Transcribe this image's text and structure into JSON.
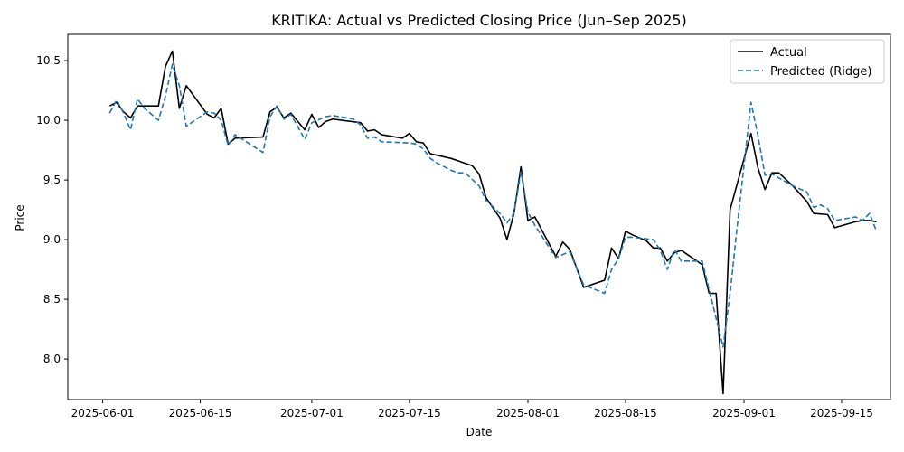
{
  "chart_data": {
    "type": "line",
    "title": "KRITIKA: Actual vs Predicted Closing Price (Jun–Sep 2025)",
    "xlabel": "Date",
    "ylabel": "Price",
    "xlim": [
      "2025-05-27",
      "2025-09-22"
    ],
    "ylim": [
      7.66,
      10.72
    ],
    "x_ticks": [
      "2025-06-01",
      "2025-06-15",
      "2025-07-01",
      "2025-07-15",
      "2025-08-01",
      "2025-08-15",
      "2025-09-01",
      "2025-09-15"
    ],
    "y_ticks": [
      8.0,
      8.5,
      9.0,
      9.5,
      10.0,
      10.5
    ],
    "legend_position": "top-right",
    "grid": false,
    "series": [
      {
        "name": "Actual",
        "color": "#000000",
        "style": "solid",
        "points": [
          [
            "2025-06-02",
            10.12
          ],
          [
            "2025-06-03",
            10.15
          ],
          [
            "2025-06-04",
            10.07
          ],
          [
            "2025-06-05",
            10.02
          ],
          [
            "2025-06-06",
            10.12
          ],
          [
            "2025-06-09",
            10.12
          ],
          [
            "2025-06-10",
            10.45
          ],
          [
            "2025-06-11",
            10.58
          ],
          [
            "2025-06-12",
            10.1
          ],
          [
            "2025-06-13",
            10.29
          ],
          [
            "2025-06-16",
            10.05
          ],
          [
            "2025-06-17",
            10.02
          ],
          [
            "2025-06-18",
            10.1
          ],
          [
            "2025-06-19",
            9.8
          ],
          [
            "2025-06-20",
            9.85
          ],
          [
            "2025-06-24",
            9.86
          ],
          [
            "2025-06-25",
            10.07
          ],
          [
            "2025-06-26",
            10.11
          ],
          [
            "2025-06-27",
            10.02
          ],
          [
            "2025-06-28",
            10.06
          ],
          [
            "2025-06-30",
            9.92
          ],
          [
            "2025-07-01",
            10.05
          ],
          [
            "2025-07-02",
            9.94
          ],
          [
            "2025-07-03",
            9.99
          ],
          [
            "2025-07-04",
            10.01
          ],
          [
            "2025-07-08",
            9.98
          ],
          [
            "2025-07-09",
            9.91
          ],
          [
            "2025-07-10",
            9.92
          ],
          [
            "2025-07-11",
            9.88
          ],
          [
            "2025-07-14",
            9.85
          ],
          [
            "2025-07-15",
            9.89
          ],
          [
            "2025-07-16",
            9.82
          ],
          [
            "2025-07-17",
            9.81
          ],
          [
            "2025-07-18",
            9.72
          ],
          [
            "2025-07-21",
            9.68
          ],
          [
            "2025-07-23",
            9.64
          ],
          [
            "2025-07-24",
            9.62
          ],
          [
            "2025-07-25",
            9.55
          ],
          [
            "2025-07-26",
            9.35
          ],
          [
            "2025-07-28",
            9.18
          ],
          [
            "2025-07-29",
            9.0
          ],
          [
            "2025-07-30",
            9.22
          ],
          [
            "2025-07-31",
            9.61
          ],
          [
            "2025-08-01",
            9.16
          ],
          [
            "2025-08-02",
            9.19
          ],
          [
            "2025-08-05",
            8.86
          ],
          [
            "2025-08-06",
            8.98
          ],
          [
            "2025-08-07",
            8.92
          ],
          [
            "2025-08-09",
            8.6
          ],
          [
            "2025-08-12",
            8.66
          ],
          [
            "2025-08-13",
            8.93
          ],
          [
            "2025-08-14",
            8.84
          ],
          [
            "2025-08-15",
            9.07
          ],
          [
            "2025-08-16",
            9.04
          ],
          [
            "2025-08-18",
            8.99
          ],
          [
            "2025-08-19",
            8.93
          ],
          [
            "2025-08-20",
            8.93
          ],
          [
            "2025-08-21",
            8.82
          ],
          [
            "2025-08-22",
            8.89
          ],
          [
            "2025-08-23",
            8.91
          ],
          [
            "2025-08-26",
            8.79
          ],
          [
            "2025-08-27",
            8.55
          ],
          [
            "2025-08-28",
            8.55
          ],
          [
            "2025-08-29",
            7.71
          ],
          [
            "2025-08-30",
            9.25
          ],
          [
            "2025-09-02",
            9.89
          ],
          [
            "2025-09-03",
            9.6
          ],
          [
            "2025-09-04",
            9.42
          ],
          [
            "2025-09-05",
            9.56
          ],
          [
            "2025-09-06",
            9.56
          ],
          [
            "2025-09-08",
            9.45
          ],
          [
            "2025-09-10",
            9.32
          ],
          [
            "2025-09-11",
            9.22
          ],
          [
            "2025-09-13",
            9.21
          ],
          [
            "2025-09-14",
            9.1
          ],
          [
            "2025-09-17",
            9.15
          ],
          [
            "2025-09-18",
            9.16
          ],
          [
            "2025-09-19",
            9.16
          ],
          [
            "2025-09-20",
            9.15
          ]
        ]
      },
      {
        "name": "Predicted (Ridge)",
        "color": "#1f77b4",
        "style": "dashed",
        "points": [
          [
            "2025-06-02",
            10.06
          ],
          [
            "2025-06-03",
            10.17
          ],
          [
            "2025-06-04",
            10.06
          ],
          [
            "2025-06-05",
            9.92
          ],
          [
            "2025-06-06",
            10.18
          ],
          [
            "2025-06-07",
            10.1
          ],
          [
            "2025-06-09",
            10.0
          ],
          [
            "2025-06-10",
            10.2
          ],
          [
            "2025-06-11",
            10.47
          ],
          [
            "2025-06-12",
            10.29
          ],
          [
            "2025-06-13",
            9.95
          ],
          [
            "2025-06-14",
            9.99
          ],
          [
            "2025-06-16",
            10.07
          ],
          [
            "2025-06-17",
            10.06
          ],
          [
            "2025-06-18",
            10.0
          ],
          [
            "2025-06-19",
            9.79
          ],
          [
            "2025-06-20",
            9.88
          ],
          [
            "2025-06-24",
            9.73
          ],
          [
            "2025-06-25",
            10.03
          ],
          [
            "2025-06-26",
            10.12
          ],
          [
            "2025-06-27",
            10.01
          ],
          [
            "2025-06-28",
            10.05
          ],
          [
            "2025-06-30",
            9.84
          ],
          [
            "2025-07-01",
            9.98
          ],
          [
            "2025-07-03",
            10.03
          ],
          [
            "2025-07-04",
            10.04
          ],
          [
            "2025-07-07",
            10.01
          ],
          [
            "2025-07-08",
            9.96
          ],
          [
            "2025-07-09",
            9.85
          ],
          [
            "2025-07-10",
            9.86
          ],
          [
            "2025-07-11",
            9.82
          ],
          [
            "2025-07-15",
            9.81
          ],
          [
            "2025-07-16",
            9.8
          ],
          [
            "2025-07-17",
            9.76
          ],
          [
            "2025-07-18",
            9.68
          ],
          [
            "2025-07-19",
            9.64
          ],
          [
            "2025-07-21",
            9.58
          ],
          [
            "2025-07-22",
            9.56
          ],
          [
            "2025-07-23",
            9.56
          ],
          [
            "2025-07-25",
            9.45
          ],
          [
            "2025-07-26",
            9.33
          ],
          [
            "2025-07-28",
            9.22
          ],
          [
            "2025-07-29",
            9.14
          ],
          [
            "2025-07-30",
            9.22
          ],
          [
            "2025-07-31",
            9.57
          ],
          [
            "2025-08-01",
            9.23
          ],
          [
            "2025-08-02",
            9.12
          ],
          [
            "2025-08-05",
            8.85
          ],
          [
            "2025-08-07",
            8.9
          ],
          [
            "2025-08-09",
            8.62
          ],
          [
            "2025-08-12",
            8.55
          ],
          [
            "2025-08-13",
            8.75
          ],
          [
            "2025-08-14",
            8.84
          ],
          [
            "2025-08-15",
            9.02
          ],
          [
            "2025-08-16",
            9.02
          ],
          [
            "2025-08-19",
            9.0
          ],
          [
            "2025-08-20",
            8.91
          ],
          [
            "2025-08-21",
            8.75
          ],
          [
            "2025-08-22",
            8.92
          ],
          [
            "2025-08-23",
            8.82
          ],
          [
            "2025-08-25",
            8.82
          ],
          [
            "2025-08-26",
            8.82
          ],
          [
            "2025-08-28",
            8.34
          ],
          [
            "2025-08-29",
            8.1
          ],
          [
            "2025-08-30",
            8.55
          ],
          [
            "2025-08-31",
            9.1
          ],
          [
            "2025-09-02",
            10.15
          ],
          [
            "2025-09-03",
            9.87
          ],
          [
            "2025-09-04",
            9.54
          ],
          [
            "2025-09-05",
            9.55
          ],
          [
            "2025-09-08",
            9.45
          ],
          [
            "2025-09-10",
            9.4
          ],
          [
            "2025-09-11",
            9.27
          ],
          [
            "2025-09-12",
            9.29
          ],
          [
            "2025-09-13",
            9.26
          ],
          [
            "2025-09-14",
            9.16
          ],
          [
            "2025-09-17",
            9.19
          ],
          [
            "2025-09-18",
            9.16
          ],
          [
            "2025-09-19",
            9.22
          ],
          [
            "2025-09-20",
            9.07
          ]
        ]
      }
    ]
  }
}
